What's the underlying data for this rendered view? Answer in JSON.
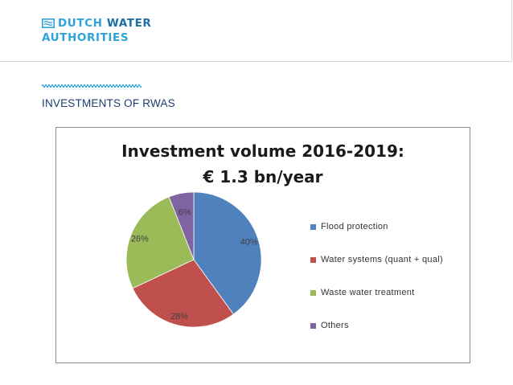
{
  "header": {
    "logo_line1_a": "DUTCH",
    "logo_line1_b": "WATER",
    "logo_line2": "AUTHORITIES"
  },
  "section_title": "INVESTMENTS OF RWAS",
  "colors": {
    "brand_light": "#2fa3d8",
    "brand_dark": "#1c6ea4",
    "title_navy": "#1b3d6e"
  },
  "chart_data": {
    "type": "pie",
    "title_line1": "Investment volume 2016-2019:",
    "title_line2": "€ 1.3 bn/year",
    "legend_position": "right",
    "slices": [
      {
        "name": "Flood protection",
        "value": 40,
        "label": "40%",
        "color": "#4f81bd"
      },
      {
        "name": "Water systems (quant + qual)",
        "value": 28,
        "label": "28%",
        "color": "#c0504d"
      },
      {
        "name": "Waste water treatment",
        "value": 26,
        "label": "26%",
        "color": "#9bbb59"
      },
      {
        "name": "Others",
        "value": 6,
        "label": "6%",
        "color": "#8064a2"
      }
    ]
  }
}
